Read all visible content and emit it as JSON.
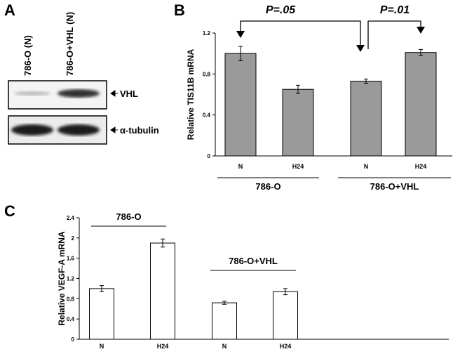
{
  "panel_labels": [
    "A",
    "B",
    "C"
  ],
  "blot": {
    "lanes": [
      "786-O (N)",
      "786-O+VHL (N)"
    ],
    "bands": [
      "VHL",
      "α-tubulin"
    ]
  },
  "chart_data": [
    {
      "type": "bar",
      "ylabel": "Relative  TIS11B mRNA",
      "categories": [
        "N",
        "H24",
        "N",
        "H24"
      ],
      "groups": [
        "786-O",
        "786-O+VHL"
      ],
      "values": [
        1.0,
        0.65,
        0.73,
        1.01
      ],
      "errors": [
        0.07,
        0.04,
        0.02,
        0.03
      ],
      "color": "#9a9a9a",
      "ylim": [
        0,
        1.2
      ],
      "yticks": [
        0,
        0.4,
        0.8,
        1.2
      ],
      "annotations": [
        "P=.05",
        "P=.01"
      ]
    },
    {
      "type": "bar",
      "ylabel": "Relative VEGF-A mRNA",
      "categories": [
        "N",
        "H24",
        "N",
        "H24"
      ],
      "groups": [
        "786-O",
        "786-O+VHL"
      ],
      "values": [
        1.0,
        1.9,
        0.72,
        0.94
      ],
      "errors": [
        0.06,
        0.08,
        0.03,
        0.06
      ],
      "color": "#ffffff",
      "ylim": [
        0,
        2.4
      ],
      "yticks": [
        0,
        0.4,
        0.8,
        1.2,
        1.6,
        2,
        2.4
      ]
    }
  ]
}
